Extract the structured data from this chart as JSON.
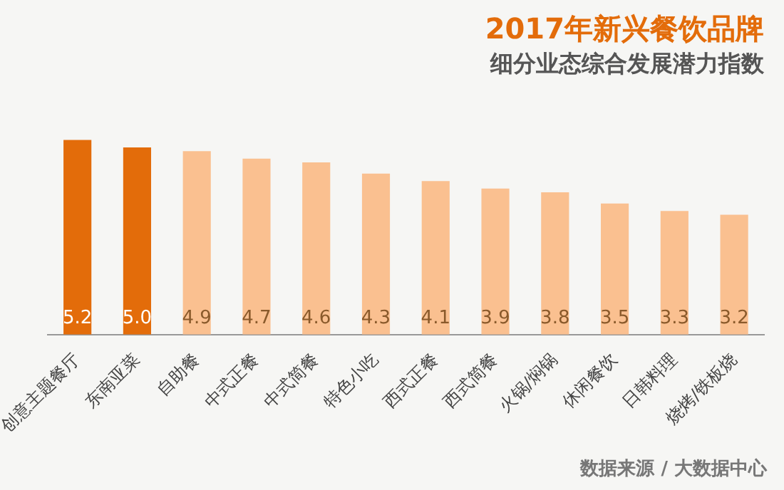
{
  "chart_data": {
    "type": "bar",
    "title": "2017年新兴餐饮品牌",
    "subtitle": "细分业态综合发展潜力指数",
    "categories": [
      "创意主题餐厅",
      "东南亚菜",
      "自助餐",
      "中式正餐",
      "中式简餐",
      "特色小吃",
      "西式正餐",
      "西式简餐",
      "火锅/焖锅",
      "休闲餐饮",
      "日韩料理",
      "烧烤/铁板烧"
    ],
    "values": [
      5.2,
      5.0,
      4.9,
      4.7,
      4.6,
      4.3,
      4.1,
      3.9,
      3.8,
      3.5,
      3.3,
      3.2
    ],
    "colors": [
      "#e36c0a",
      "#e36c0a",
      "#fac090",
      "#fac090",
      "#fac090",
      "#fac090",
      "#fac090",
      "#fac090",
      "#fac090",
      "#fac090",
      "#fac090",
      "#fac090"
    ],
    "value_labels": [
      "5.2",
      "5.0",
      "4.9",
      "4.7",
      "4.6",
      "4.3",
      "4.1",
      "3.9",
      "3.8",
      "3.5",
      "3.3",
      "3.2"
    ],
    "grid": false,
    "legend": false,
    "tick_labels": "x",
    "annotations": [
      "数据来源 / 大数据中心"
    ]
  }
}
